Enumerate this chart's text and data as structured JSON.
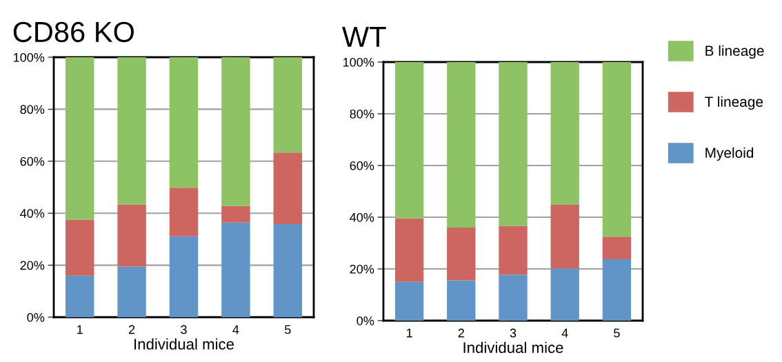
{
  "chart_data": [
    {
      "type": "bar",
      "title": "CD86 KO",
      "xlabel": "Individual mice",
      "categories": [
        "1",
        "2",
        "3",
        "4",
        "5"
      ],
      "stacked": true,
      "grid": "y",
      "legend": false,
      "ylim": [
        0,
        100
      ],
      "yticks": [
        {
          "value": 0,
          "label": "0%"
        },
        {
          "value": 20,
          "label": "20%"
        },
        {
          "value": 40,
          "label": "40%"
        },
        {
          "value": 60,
          "label": "60%"
        },
        {
          "value": 80,
          "label": "80%"
        },
        {
          "value": 100,
          "label": "100%"
        }
      ],
      "series": [
        {
          "color": "#6195c8",
          "values": [
            16,
            19.5,
            31.1,
            36.4,
            35.8
          ]
        },
        {
          "color": "#cd6660",
          "values": [
            21.5,
            23.8,
            18.7,
            6.4,
            27.5
          ]
        },
        {
          "color": "#8dc265",
          "values": [
            62.5,
            56.7,
            50.2,
            57.2,
            36.7
          ]
        }
      ]
    },
    {
      "type": "bar",
      "title": "WT",
      "xlabel": "Individual mice",
      "categories": [
        "1",
        "2",
        "3",
        "4",
        "5"
      ],
      "stacked": true,
      "grid": "y",
      "legend": "right",
      "ylim": [
        0,
        100
      ],
      "yticks": [
        {
          "value": 0,
          "label": "0%"
        },
        {
          "value": 20,
          "label": "20%"
        },
        {
          "value": 40,
          "label": "40%"
        },
        {
          "value": 60,
          "label": "60%"
        },
        {
          "value": 80,
          "label": "80%"
        },
        {
          "value": 100,
          "label": "100%"
        }
      ],
      "series": [
        {
          "name": "Myeloid",
          "color": "#6195c8",
          "values": [
            15.0,
            15.6,
            17.8,
            20.2,
            23.7
          ]
        },
        {
          "name": "T lineage",
          "color": "#cd6660",
          "values": [
            24.5,
            20.4,
            18.8,
            24.6,
            8.8
          ]
        },
        {
          "name": "B lineage",
          "color": "#8dc265",
          "values": [
            60.5,
            64.0,
            63.4,
            55.2,
            67.5
          ]
        }
      ]
    }
  ]
}
